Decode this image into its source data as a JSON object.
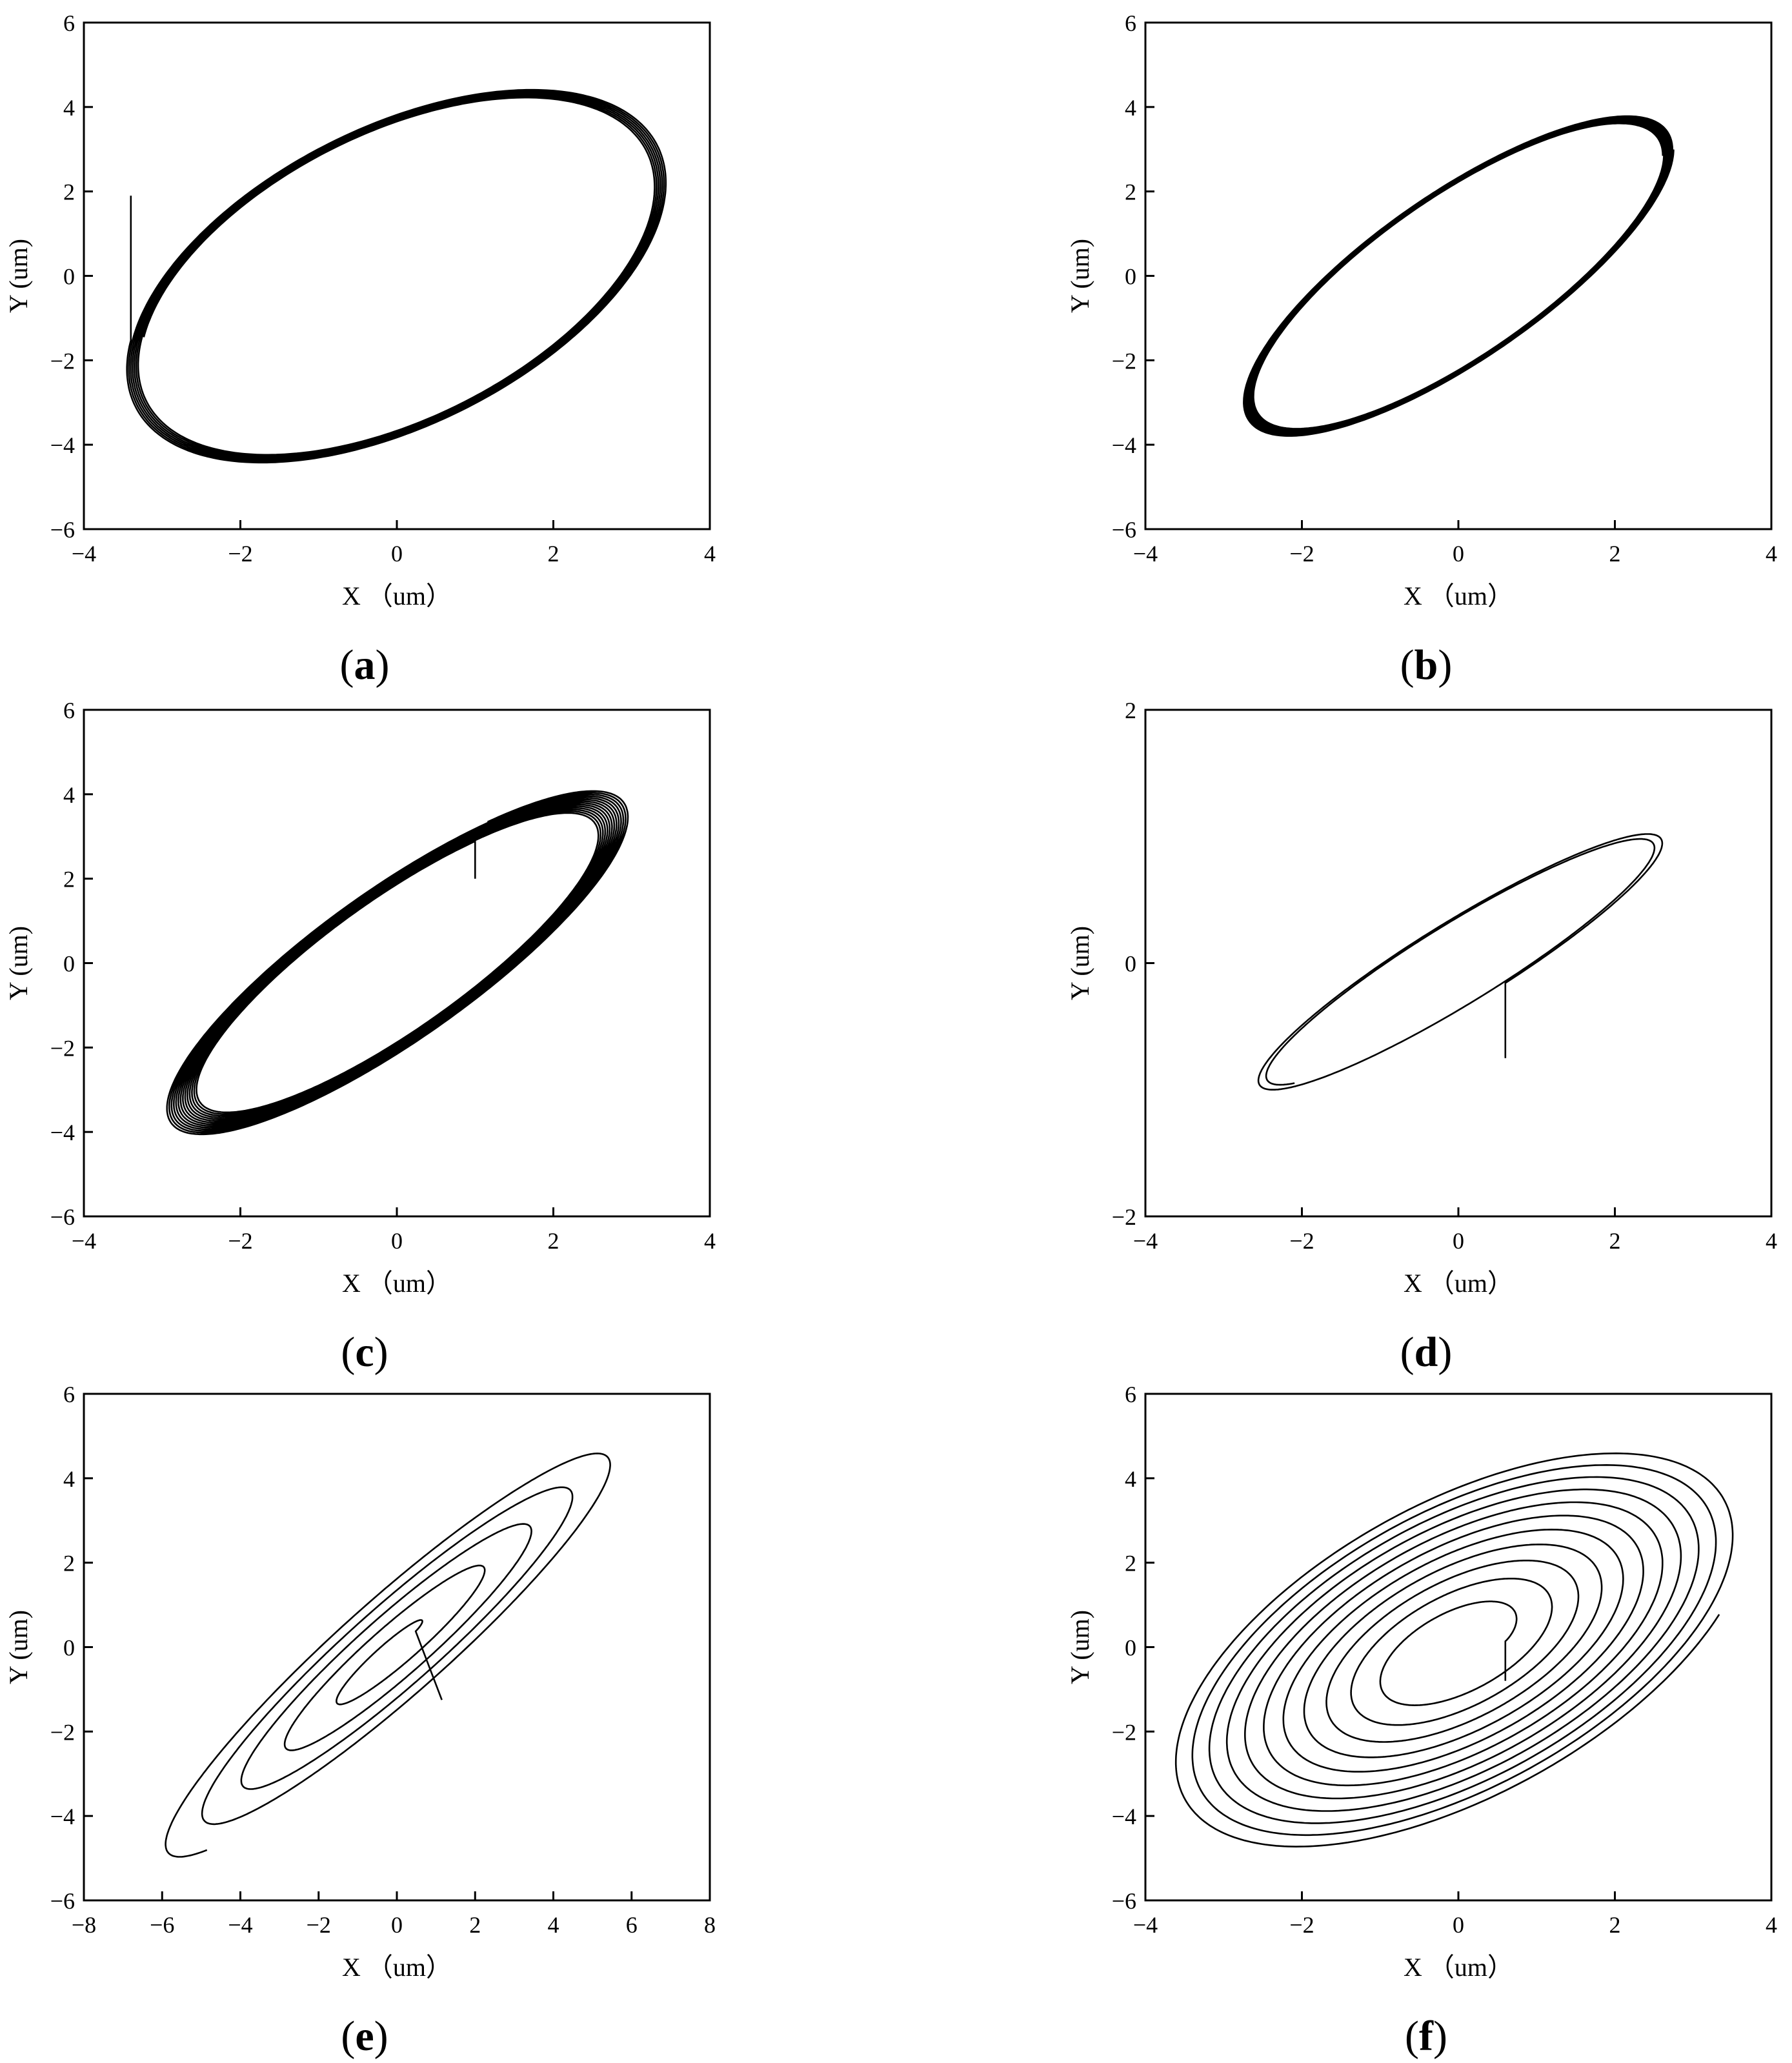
{
  "chart_data": [
    {
      "type": "line",
      "panel_label": "(a)",
      "xlabel": "X （um）",
      "ylabel": "Y (um)",
      "xlim": [
        -4,
        4
      ],
      "ylim": [
        -6,
        6
      ],
      "xticks": [
        -4,
        -2,
        0,
        2,
        4
      ],
      "yticks": [
        -6,
        -4,
        -2,
        0,
        2,
        4,
        6
      ],
      "xtick_labels": [
        "−4",
        "−2",
        "0",
        "2",
        "4"
      ],
      "ytick_labels": [
        "−6",
        "−4",
        "−2",
        "0",
        "2",
        "4",
        "6"
      ],
      "grid": false,
      "trajectory": {
        "kind": "orbit",
        "center": [
          0,
          0
        ],
        "x_amplitude": 3.35,
        "y_amplitude": 4.3,
        "phase_lag_deg": 60,
        "loops": 7,
        "start": [
          -3.4,
          1.9
        ],
        "amp_start": 1.03,
        "amp_end": 0.98
      }
    },
    {
      "type": "line",
      "panel_label": "(b)",
      "xlabel": "X （um）",
      "ylabel": "Y (um)",
      "xlim": [
        -4,
        4
      ],
      "ylim": [
        -6,
        6
      ],
      "xticks": [
        -4,
        -2,
        0,
        2,
        4
      ],
      "yticks": [
        -6,
        -4,
        -2,
        0,
        2,
        4,
        6
      ],
      "xtick_labels": [
        "−4",
        "−2",
        "0",
        "2",
        "4"
      ],
      "ytick_labels": [
        "−6",
        "−4",
        "−2",
        "0",
        "2",
        "4",
        "6"
      ],
      "grid": false,
      "trajectory": {
        "kind": "orbit",
        "center": [
          0,
          0
        ],
        "x_amplitude": 2.75,
        "y_amplitude": 3.8,
        "phase_lag_deg": 38,
        "loops": 10,
        "amp_start": 0.95,
        "amp_end": 1.0
      }
    },
    {
      "type": "line",
      "panel_label": "(c)",
      "xlabel": "X （um）",
      "ylabel": "Y (um)",
      "xlim": [
        -4,
        4
      ],
      "ylim": [
        -6,
        6
      ],
      "xticks": [
        -4,
        -2,
        0,
        2,
        4
      ],
      "yticks": [
        -6,
        -4,
        -2,
        0,
        2,
        4,
        6
      ],
      "xtick_labels": [
        "−4",
        "−2",
        "0",
        "2",
        "4"
      ],
      "ytick_labels": [
        "−6",
        "−4",
        "−2",
        "0",
        "2",
        "4",
        "6"
      ],
      "grid": false,
      "trajectory": {
        "kind": "orbit",
        "center": [
          0,
          0
        ],
        "x_amplitude": 2.9,
        "y_amplitude": 4.0,
        "phase_lag_deg": 32,
        "loops": 14,
        "start": [
          1.0,
          2.0
        ],
        "amp_start": 0.88,
        "amp_end": 1.02
      }
    },
    {
      "type": "line",
      "panel_label": "(d)",
      "xlabel": "X （um）",
      "ylabel": "Y (um)",
      "xlim": [
        -4,
        4
      ],
      "ylim": [
        -2,
        2
      ],
      "xticks": [
        -4,
        -2,
        0,
        2,
        4
      ],
      "yticks": [
        -2,
        0,
        2
      ],
      "xtick_labels": [
        "−4",
        "−2",
        "0",
        "2",
        "4"
      ],
      "ytick_labels": [
        "−2",
        "0",
        "2"
      ],
      "grid": false,
      "trajectory": {
        "kind": "orbit",
        "center": [
          0,
          0
        ],
        "x_amplitude": 2.55,
        "y_amplitude": 1.0,
        "phase_lag_deg": 22,
        "loops": 1.8,
        "start": [
          0.6,
          -0.75
        ],
        "amp_start": 1.03,
        "amp_end": 0.96
      }
    },
    {
      "type": "line",
      "panel_label": "(e)",
      "xlabel": "X （um）",
      "ylabel": "Y (um)",
      "xlim": [
        -8,
        8
      ],
      "ylim": [
        -6,
        6
      ],
      "xticks": [
        -8,
        -6,
        -4,
        -2,
        0,
        2,
        4,
        6,
        8
      ],
      "yticks": [
        -6,
        -4,
        -2,
        0,
        2,
        4,
        6
      ],
      "xtick_labels": [
        "−8",
        "−6",
        "−4",
        "−2",
        "0",
        "2",
        "4",
        "6",
        "8"
      ],
      "ytick_labels": [
        "−6",
        "−4",
        "−2",
        "0",
        "2",
        "4",
        "6"
      ],
      "grid": false,
      "trajectory": {
        "kind": "spiral",
        "center": [
          0,
          0
        ],
        "x_amplitude": 6.0,
        "y_amplitude": 5.0,
        "phase_lag_deg": 20,
        "loops": 4.6,
        "start": [
          1.15,
          -1.25
        ],
        "r_start": 0.08,
        "r_end": 1.0
      }
    },
    {
      "type": "line",
      "panel_label": "(f)",
      "xlabel": "X （um）",
      "ylabel": "Y (um)",
      "xlim": [
        -4,
        4
      ],
      "ylim": [
        -6,
        6
      ],
      "xticks": [
        -4,
        -2,
        0,
        2,
        4
      ],
      "yticks": [
        -6,
        -4,
        -2,
        0,
        2,
        4,
        6
      ],
      "xtick_labels": [
        "−4",
        "−2",
        "0",
        "2",
        "4"
      ],
      "ytick_labels": [
        "−6",
        "−4",
        "−2",
        "0",
        "2",
        "4",
        "6"
      ],
      "grid": false,
      "trajectory": {
        "kind": "spiral",
        "center": [
          0,
          0
        ],
        "x_amplitude": 3.7,
        "y_amplitude": 4.8,
        "phase_lag_deg": 55,
        "loops": 11,
        "start": [
          0.6,
          -0.8
        ],
        "r_start": 0.18,
        "r_end": 1.0
      }
    }
  ]
}
